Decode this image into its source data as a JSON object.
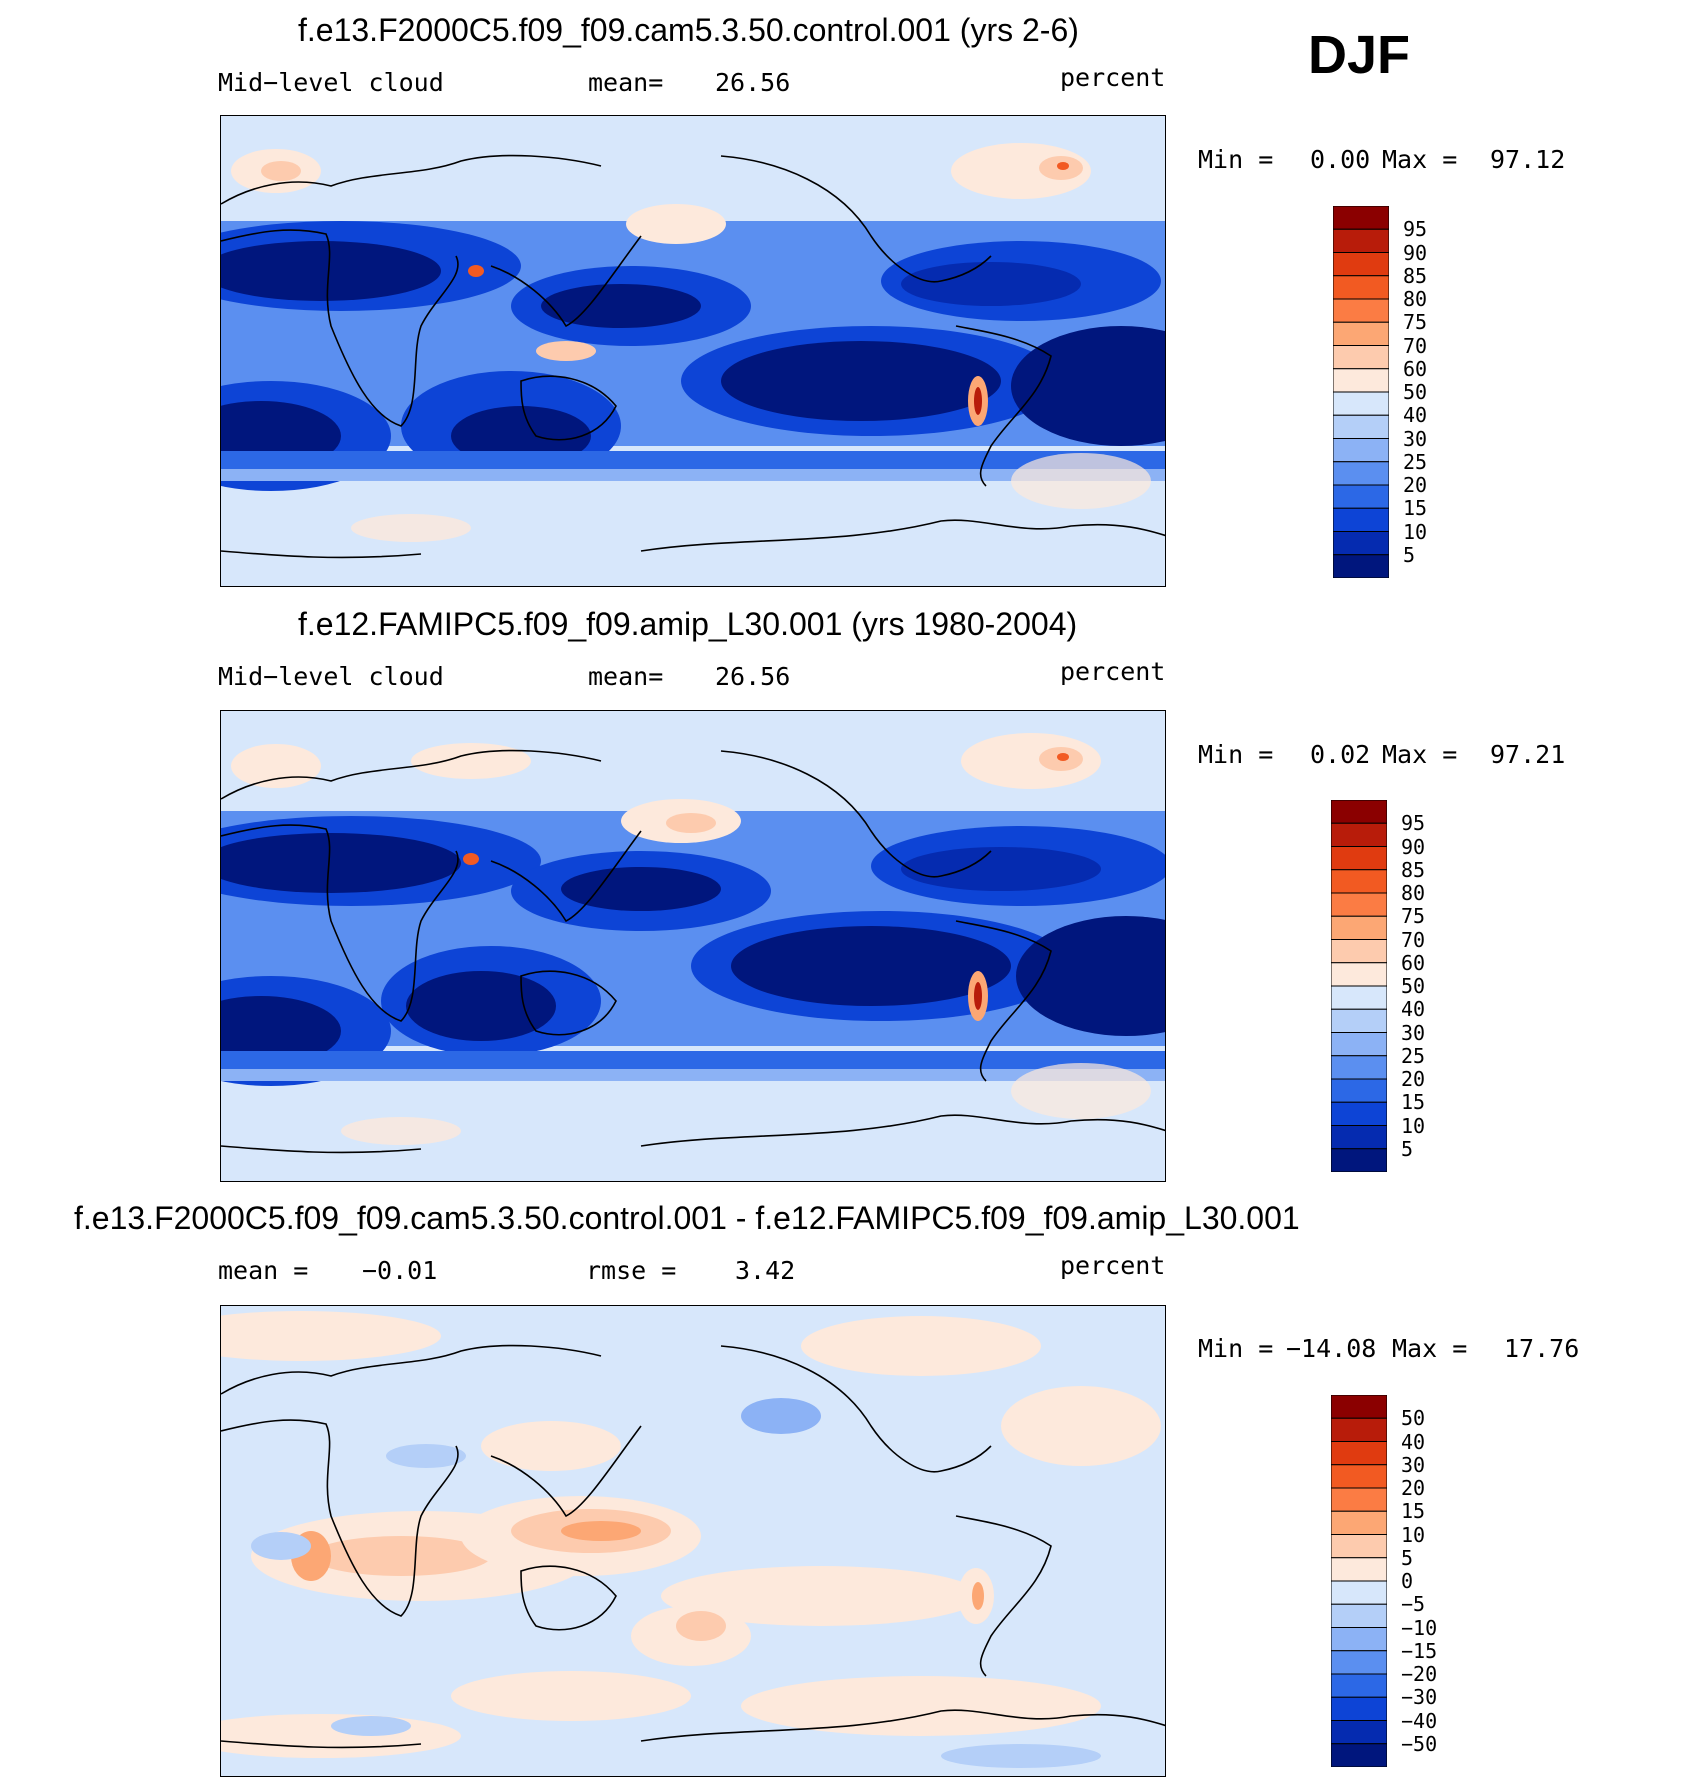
{
  "season": "DJF",
  "panels": [
    {
      "id": "test",
      "title": "f.e13.F2000C5.f09_f09.cam5.3.50.control.001 (yrs 2-6)",
      "left_label": "Mid−level  cloud",
      "stat_label": "mean=",
      "stat_value": "26.56",
      "units": "percent",
      "min_label": "Min  =",
      "min_value": "0.00",
      "max_label": "Max  =",
      "max_value": "97.12",
      "colorbar": [
        "95",
        "90",
        "85",
        "80",
        "75",
        "70",
        "60",
        "50",
        "40",
        "30",
        "25",
        "20",
        "15",
        "10",
        "5"
      ]
    },
    {
      "id": "control",
      "title": "f.e12.FAMIPC5.f09_f09.amip_L30.001 (yrs 1980-2004)",
      "left_label": "Mid−level  cloud",
      "stat_label": "mean=",
      "stat_value": "26.56",
      "units": "percent",
      "min_label": "Min  =",
      "min_value": "0.02",
      "max_label": "Max  =",
      "max_value": "97.21",
      "colorbar": [
        "95",
        "90",
        "85",
        "80",
        "75",
        "70",
        "60",
        "50",
        "40",
        "30",
        "25",
        "20",
        "15",
        "10",
        "5"
      ]
    },
    {
      "id": "difference",
      "title": "f.e13.F2000C5.f09_f09.cam5.3.50.control.001 - f.e12.FAMIPC5.f09_f09.amip_L30.001",
      "left_label": "mean  =",
      "left_value": "−0.01",
      "stat_label": "rmse  =",
      "stat_value": "3.42",
      "units": "percent",
      "min_label": "Min  =",
      "min_value": "−14.08",
      "max_label": "Max  =",
      "max_value": "17.76",
      "colorbar": [
        "50",
        "40",
        "30",
        "20",
        "15",
        "10",
        "5",
        "0",
        "−5",
        "−10",
        "−15",
        "−20",
        "−30",
        "−40",
        "−50"
      ]
    }
  ],
  "colors": {
    "scale": [
      "#8b0000",
      "#b81c0a",
      "#e03b10",
      "#f25a22",
      "#fb7c44",
      "#fca774",
      "#fdcbae",
      "#fde9dc",
      "#d7e7fb",
      "#b4cff8",
      "#8cb2f5",
      "#5b8ff0",
      "#2c68e6",
      "#0d44d6",
      "#052bb0",
      "#00167d"
    ]
  }
}
